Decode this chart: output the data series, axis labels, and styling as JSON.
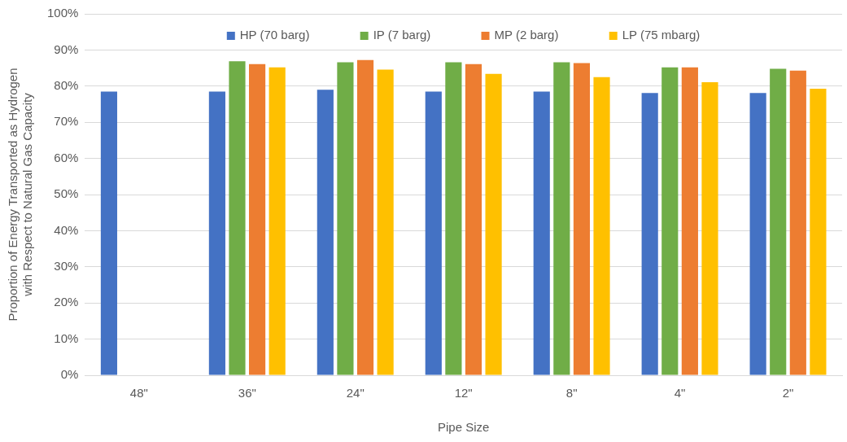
{
  "chart_data": {
    "type": "bar",
    "xlabel": "Pipe Size",
    "ylabel": "Proportion of Energy Transported as Hydrogen\nwith Respect to Natural Gas Capacity",
    "categories": [
      "48\"",
      "36\"",
      "24\"",
      "12\"",
      "8\"",
      "4\"",
      "2\""
    ],
    "series": [
      {
        "name": "HP (70 barg)",
        "color": "#4472c4",
        "values": [
          78.5,
          78.5,
          79.0,
          78.5,
          78.5,
          78.1,
          78.1
        ]
      },
      {
        "name": "IP (7 barg)",
        "color": "#70ad47",
        "values": [
          null,
          86.9,
          86.6,
          86.6,
          86.6,
          85.2,
          84.8
        ]
      },
      {
        "name": "MP (2 barg)",
        "color": "#ed7d31",
        "values": [
          null,
          86.1,
          87.2,
          86.1,
          86.4,
          85.2,
          84.3
        ]
      },
      {
        "name": "LP (75 mbarg)",
        "color": "#ffc000",
        "values": [
          null,
          85.2,
          84.6,
          83.4,
          82.5,
          81.1,
          79.3
        ]
      }
    ],
    "ylim": [
      0,
      100
    ],
    "yticks": [
      {
        "value": 0,
        "label": "0%"
      },
      {
        "value": 10,
        "label": "10%"
      },
      {
        "value": 20,
        "label": "20%"
      },
      {
        "value": 30,
        "label": "30%"
      },
      {
        "value": 40,
        "label": "40%"
      },
      {
        "value": 50,
        "label": "50%"
      },
      {
        "value": 60,
        "label": "60%"
      },
      {
        "value": 70,
        "label": "70%"
      },
      {
        "value": 80,
        "label": "80%"
      },
      {
        "value": 90,
        "label": "90%"
      },
      {
        "value": 100,
        "label": "100%"
      }
    ],
    "grid": "y",
    "legend": "top"
  }
}
